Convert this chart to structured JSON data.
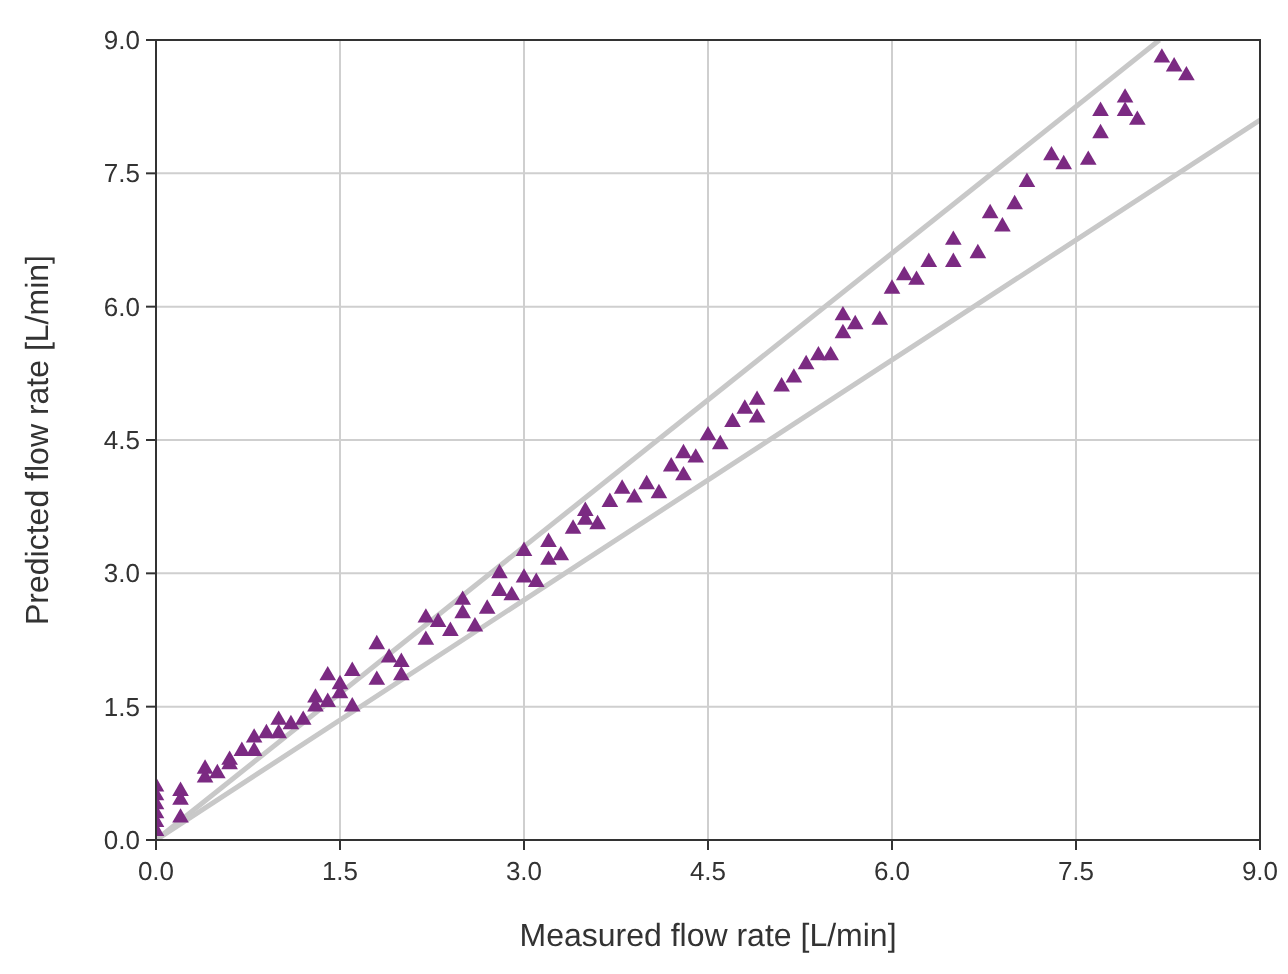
{
  "chart_data": {
    "type": "scatter",
    "xlabel": "Measured flow rate [L/min]",
    "ylabel": "Predicted flow rate [L/min]",
    "xlim": [
      0,
      9
    ],
    "ylim": [
      0,
      9
    ],
    "xticks": [
      {
        "value": 0,
        "label": "0.0"
      },
      {
        "value": 1.5,
        "label": "1.5"
      },
      {
        "value": 3,
        "label": "3.0"
      },
      {
        "value": 4.5,
        "label": "4.5"
      },
      {
        "value": 6,
        "label": "6.0"
      },
      {
        "value": 7.5,
        "label": "7.5"
      },
      {
        "value": 9,
        "label": "9.0"
      }
    ],
    "yticks": [
      {
        "value": 0,
        "label": "0.0"
      },
      {
        "value": 1.5,
        "label": "1.5"
      },
      {
        "value": 3,
        "label": "3.0"
      },
      {
        "value": 4.5,
        "label": "4.5"
      },
      {
        "value": 6,
        "label": "6.0"
      },
      {
        "value": 7.5,
        "label": "7.5"
      },
      {
        "value": 9,
        "label": "9.0"
      }
    ],
    "grid": true,
    "series": [
      {
        "type": "line",
        "color": "#c8c8c8",
        "x": [
          0,
          8.18
        ],
        "values": [
          0,
          9
        ]
      },
      {
        "type": "line",
        "color": "#c8c8c8",
        "x": [
          0,
          9
        ],
        "values": [
          0,
          8.1
        ]
      },
      {
        "color": "#7b2a82",
        "marker": "triangle",
        "x": [
          0,
          0,
          0,
          0,
          0,
          0,
          0.2,
          0.2,
          0.2,
          0.4,
          0.4,
          0.5,
          0.6,
          0.6,
          0.7,
          0.8,
          0.8,
          0.9,
          1.0,
          1.0,
          1.1,
          1.2,
          1.3,
          1.3,
          1.4,
          1.4,
          1.5,
          1.5,
          1.6,
          1.6,
          1.8,
          1.8,
          1.9,
          2.0,
          2.0,
          2.2,
          2.2,
          2.3,
          2.4,
          2.5,
          2.5,
          2.6,
          2.7,
          2.8,
          2.8,
          2.9,
          3.0,
          3.0,
          3.1,
          3.2,
          3.2,
          3.3,
          3.4,
          3.5,
          3.5,
          3.6,
          3.7,
          3.8,
          3.9,
          4.0,
          4.1,
          4.2,
          4.3,
          4.3,
          4.4,
          4.5,
          4.6,
          4.7,
          4.8,
          4.9,
          4.9,
          5.1,
          5.2,
          5.3,
          5.4,
          5.5,
          5.6,
          5.6,
          5.7,
          5.9,
          6.0,
          6.1,
          6.2,
          6.3,
          6.5,
          6.5,
          6.7,
          6.8,
          6.9,
          7.0,
          7.1,
          7.3,
          7.4,
          7.6,
          7.7,
          7.7,
          7.9,
          7.9,
          8.0,
          8.2,
          8.3,
          8.4
        ],
        "values": [
          0.1,
          0.2,
          0.3,
          0.4,
          0.5,
          0.6,
          0.25,
          0.45,
          0.55,
          0.7,
          0.8,
          0.75,
          0.9,
          0.85,
          1.0,
          1.0,
          1.15,
          1.2,
          1.35,
          1.2,
          1.3,
          1.35,
          1.5,
          1.6,
          1.85,
          1.55,
          1.65,
          1.75,
          1.9,
          1.5,
          2.2,
          1.8,
          2.05,
          2.0,
          1.85,
          2.5,
          2.25,
          2.45,
          2.35,
          2.7,
          2.55,
          2.4,
          2.6,
          3.0,
          2.8,
          2.75,
          3.25,
          2.95,
          2.9,
          3.35,
          3.15,
          3.2,
          3.5,
          3.7,
          3.6,
          3.55,
          3.8,
          3.95,
          3.85,
          4.0,
          3.9,
          4.2,
          4.35,
          4.1,
          4.3,
          4.55,
          4.45,
          4.7,
          4.85,
          4.95,
          4.75,
          5.1,
          5.2,
          5.35,
          5.45,
          5.45,
          5.7,
          5.9,
          5.8,
          5.85,
          6.2,
          6.35,
          6.3,
          6.5,
          6.5,
          6.75,
          6.6,
          7.05,
          6.9,
          7.15,
          7.4,
          7.7,
          7.6,
          7.65,
          8.2,
          7.95,
          8.2,
          8.35,
          8.1,
          8.8,
          8.7,
          8.6
        ]
      }
    ]
  }
}
